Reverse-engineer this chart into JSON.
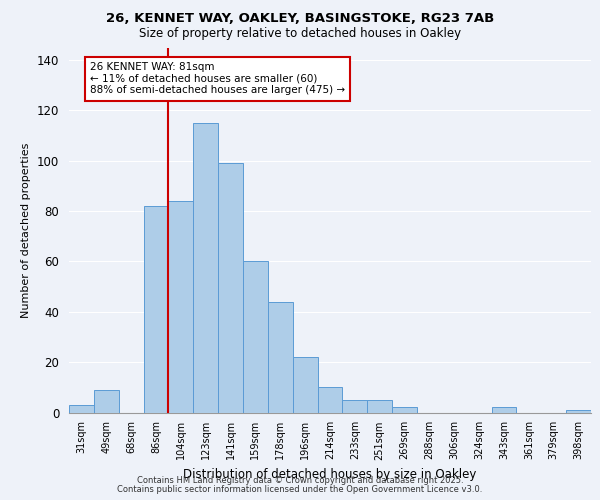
{
  "title1": "26, KENNET WAY, OAKLEY, BASINGSTOKE, RG23 7AB",
  "title2": "Size of property relative to detached houses in Oakley",
  "xlabel": "Distribution of detached houses by size in Oakley",
  "ylabel": "Number of detached properties",
  "footer1": "Contains HM Land Registry data © Crown copyright and database right 2025.",
  "footer2": "Contains public sector information licensed under the Open Government Licence v3.0.",
  "annotation_title": "26 KENNET WAY: 81sqm",
  "annotation_line1": "← 11% of detached houses are smaller (60)",
  "annotation_line2": "88% of semi-detached houses are larger (475) →",
  "bar_labels": [
    "31sqm",
    "49sqm",
    "68sqm",
    "86sqm",
    "104sqm",
    "123sqm",
    "141sqm",
    "159sqm",
    "178sqm",
    "196sqm",
    "214sqm",
    "233sqm",
    "251sqm",
    "269sqm",
    "288sqm",
    "306sqm",
    "324sqm",
    "343sqm",
    "361sqm",
    "379sqm",
    "398sqm"
  ],
  "bar_values": [
    3,
    9,
    0,
    82,
    84,
    115,
    99,
    60,
    44,
    22,
    10,
    5,
    5,
    2,
    0,
    0,
    0,
    2,
    0,
    0,
    1
  ],
  "bar_color": "#aecde8",
  "bar_edge_color": "#5b9bd5",
  "vline_x": 3.5,
  "vline_color": "#cc0000",
  "annotation_box_color": "#cc0000",
  "ylim": [
    0,
    145
  ],
  "background_color": "#eef2f9",
  "grid_color": "#ffffff"
}
